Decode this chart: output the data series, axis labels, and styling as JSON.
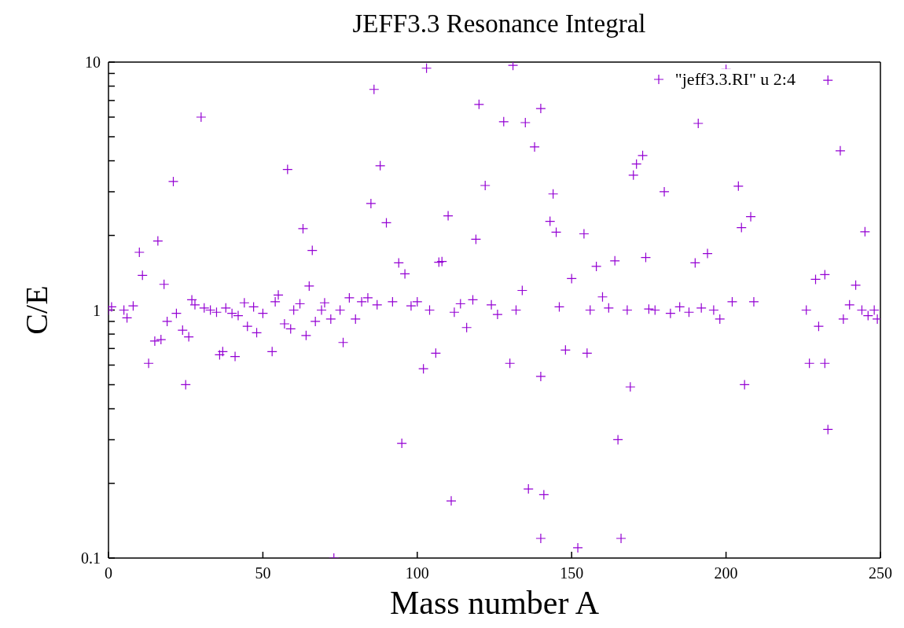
{
  "chart_data": {
    "type": "scatter",
    "title": "JEFF3.3 Resonance Integral",
    "xlabel": "Mass number A",
    "ylabel": "C/E",
    "xlim": [
      0,
      250
    ],
    "xticks": [
      0,
      50,
      100,
      150,
      200,
      250
    ],
    "ylim": [
      0.1,
      10
    ],
    "yticks": [
      0.1,
      {
        "value": 0.2,
        "label": null
      },
      {
        "value": 0.3,
        "label": null
      },
      {
        "value": 0.4,
        "label": null
      },
      {
        "value": 0.5,
        "label": null
      },
      {
        "value": 0.6,
        "label": null
      },
      {
        "value": 0.7,
        "label": null
      },
      {
        "value": 0.8,
        "label": null
      },
      {
        "value": 0.9,
        "label": null
      },
      1,
      {
        "value": 2,
        "label": null
      },
      {
        "value": 3,
        "label": null
      },
      {
        "value": 4,
        "label": null
      },
      {
        "value": 5,
        "label": null
      },
      {
        "value": 6,
        "label": null
      },
      {
        "value": 7,
        "label": null
      },
      {
        "value": 8,
        "label": null
      },
      {
        "value": 9,
        "label": null
      },
      10
    ],
    "log": "y",
    "legend": "top right",
    "marker": "cross",
    "series": [
      {
        "name": "\"jeff3.3.RI\" u 2:4",
        "color": "#9400d3",
        "x": [
          0,
          1,
          5,
          6,
          8,
          10,
          11,
          13,
          15,
          16,
          17,
          18,
          19,
          21,
          22,
          24,
          25,
          26,
          27,
          28,
          30,
          31,
          33,
          35,
          36,
          37,
          38,
          40,
          41,
          42,
          44,
          45,
          47,
          48,
          50,
          53,
          54,
          55,
          57,
          58,
          59,
          60,
          62,
          63,
          64,
          65,
          66,
          67,
          69,
          70,
          72,
          73,
          75,
          76,
          78,
          80,
          82,
          84,
          85,
          86,
          87,
          88,
          90,
          92,
          94,
          95,
          96,
          98,
          100,
          102,
          103,
          104,
          106,
          107,
          108,
          110,
          111,
          112,
          114,
          116,
          118,
          119,
          120,
          122,
          124,
          126,
          128,
          130,
          131,
          132,
          134,
          135,
          136,
          138,
          140,
          140,
          141,
          140,
          143,
          144,
          145,
          146,
          148,
          150,
          152,
          154,
          155,
          156,
          158,
          160,
          162,
          164,
          165,
          166,
          168,
          169,
          170,
          171,
          173,
          174,
          175,
          177,
          180,
          182,
          185,
          188,
          190,
          191,
          192,
          194,
          196,
          198,
          200,
          202,
          204,
          205,
          206,
          208,
          209,
          226,
          227,
          229,
          230,
          232,
          232,
          233,
          233,
          237,
          238,
          240,
          242,
          244,
          245,
          246,
          248,
          249
        ],
        "values": [
          1.0,
          1.03,
          1.0,
          0.93,
          1.04,
          1.71,
          1.38,
          0.61,
          0.75,
          1.9,
          0.76,
          1.27,
          0.9,
          3.3,
          0.97,
          0.83,
          0.5,
          0.78,
          1.1,
          1.05,
          6.0,
          1.02,
          1.0,
          0.98,
          0.66,
          0.68,
          1.02,
          0.97,
          0.65,
          0.95,
          1.07,
          0.86,
          1.03,
          0.81,
          0.97,
          0.68,
          1.08,
          1.15,
          0.88,
          3.69,
          0.84,
          1.0,
          1.06,
          2.13,
          0.79,
          1.25,
          1.74,
          0.9,
          1.0,
          1.07,
          0.92,
          0.1,
          1.0,
          0.74,
          1.12,
          0.92,
          1.08,
          1.12,
          2.69,
          7.76,
          1.05,
          3.82,
          2.25,
          1.08,
          1.55,
          0.29,
          1.4,
          1.04,
          1.08,
          0.58,
          9.45,
          1.0,
          0.67,
          1.56,
          1.57,
          2.4,
          0.17,
          0.98,
          1.06,
          0.85,
          1.1,
          1.93,
          6.75,
          3.18,
          1.05,
          0.96,
          5.75,
          0.61,
          9.7,
          1.0,
          1.2,
          5.7,
          0.19,
          4.55,
          6.5,
          0.54,
          0.18,
          0.12,
          2.28,
          2.94,
          2.06,
          1.03,
          0.69,
          1.34,
          0.11,
          2.03,
          0.67,
          1.0,
          1.5,
          1.13,
          1.02,
          1.58,
          0.3,
          0.12,
          1.0,
          0.49,
          3.5,
          3.88,
          4.2,
          1.63,
          1.01,
          1.0,
          3.0,
          0.97,
          1.03,
          0.98,
          1.55,
          5.66,
          1.02,
          1.69,
          1.0,
          0.92,
          9.34,
          1.08,
          3.16,
          2.15,
          0.5,
          2.38,
          1.08,
          1.0,
          0.61,
          1.33,
          0.86,
          1.39,
          0.61,
          8.45,
          0.33,
          4.39,
          0.92,
          1.05,
          1.26,
          1.0,
          2.07,
          0.95,
          1.0,
          0.92
        ]
      }
    ]
  }
}
